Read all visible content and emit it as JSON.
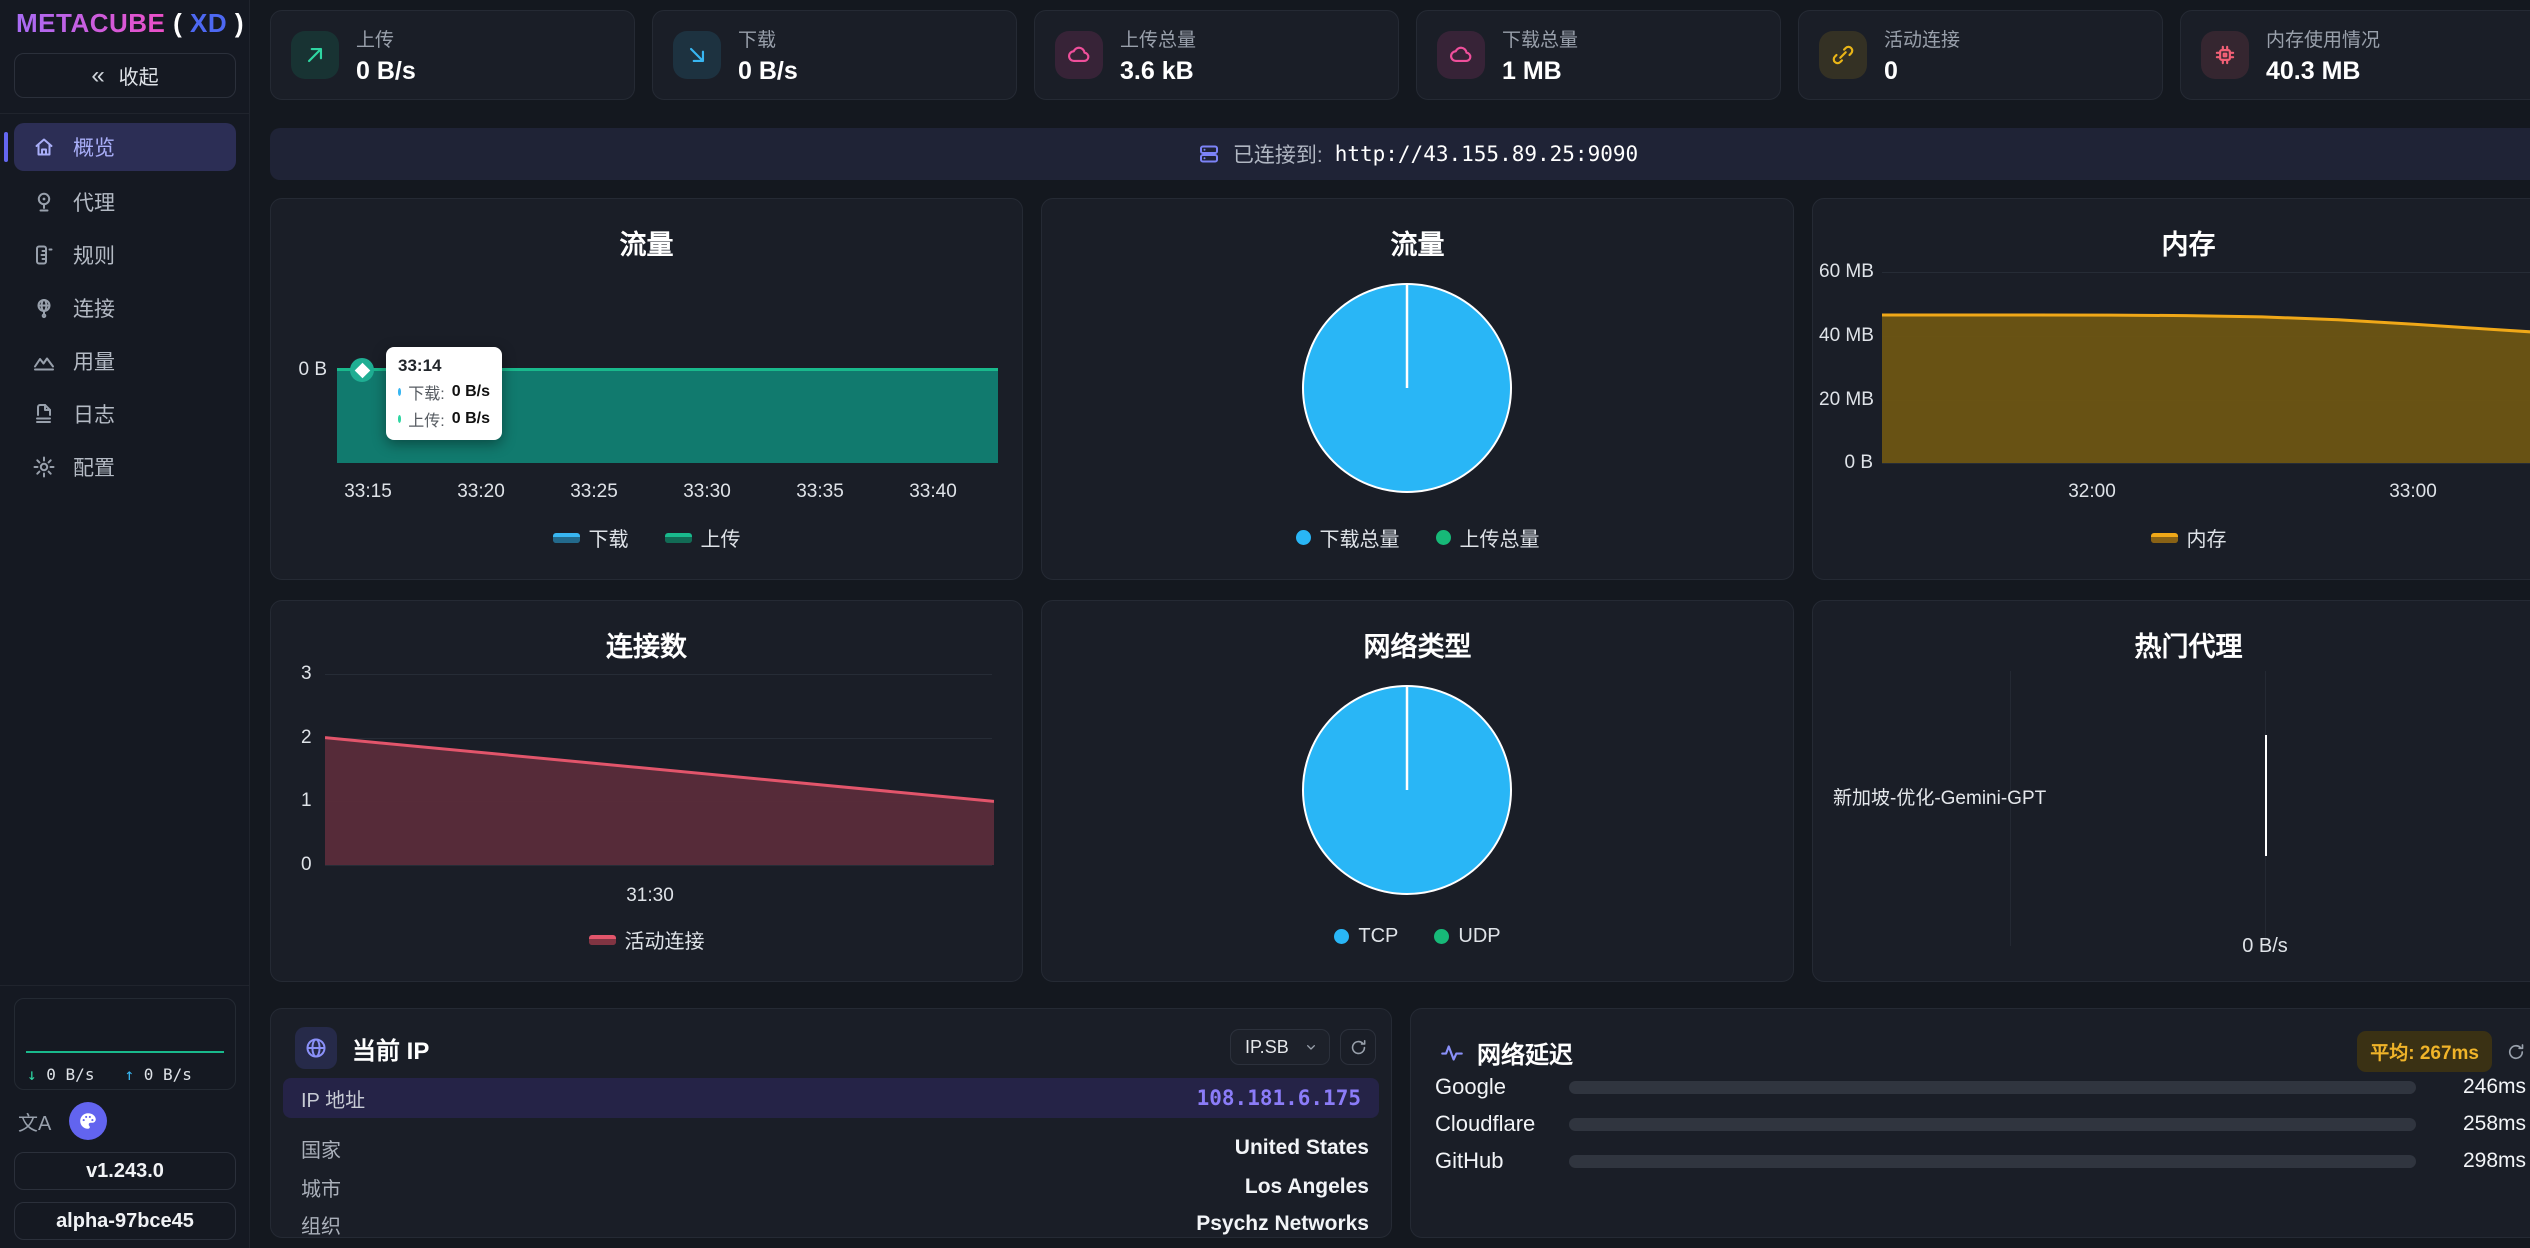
{
  "sidebar": {
    "logo": {
      "brand": "METACUBE",
      "open": "(",
      "variant": "XD",
      "close": ")"
    },
    "collapse": {
      "icon": "chevrons-left-icon",
      "label": "收起"
    },
    "nav": [
      {
        "label": "概览",
        "icon": "home-icon",
        "active": true
      },
      {
        "label": "代理",
        "icon": "proxy-icon",
        "active": false
      },
      {
        "label": "规则",
        "icon": "rules-icon",
        "active": false
      },
      {
        "label": "连接",
        "icon": "connections-icon",
        "active": false
      },
      {
        "label": "用量",
        "icon": "usage-icon",
        "active": false
      },
      {
        "label": "日志",
        "icon": "logs-icon",
        "active": false
      },
      {
        "label": "配置",
        "icon": "config-icon",
        "active": false
      }
    ],
    "footer": {
      "down_speed": "0 B/s",
      "up_speed": "0 B/s",
      "lang_icon_text": "文A",
      "palette_icon": "palette-icon",
      "version": "v1.243.0",
      "build": "alpha-97bce45",
      "sparkline_color": "#19b98c"
    }
  },
  "stats": [
    {
      "label": "上传",
      "value": "0 B/s",
      "icon": "trend-up-icon",
      "accent": "#2fd6a2",
      "bg": "rgba(16,185,129,0.14)"
    },
    {
      "label": "下载",
      "value": "0 B/s",
      "icon": "trend-down-icon",
      "accent": "#38b6f1",
      "bg": "rgba(56,182,241,0.13)"
    },
    {
      "label": "上传总量",
      "value": "3.6 kB",
      "icon": "cloud-icon",
      "accent": "#ef4f9b",
      "bg": "rgba(236,72,153,0.14)"
    },
    {
      "label": "下载总量",
      "value": "1 MB",
      "icon": "cloud-icon",
      "accent": "#ef4f9b",
      "bg": "rgba(236,72,153,0.14)"
    },
    {
      "label": "活动连接",
      "value": "0",
      "icon": "link-icon",
      "accent": "#e9b517",
      "bg": "rgba(233,181,23,0.13)"
    },
    {
      "label": "内存使用情况",
      "value": "40.3 MB",
      "icon": "chip-icon",
      "accent": "#f26076",
      "bg": "rgba(242,96,118,0.13)"
    }
  ],
  "banner": {
    "icon": "server-icon",
    "label": "已连接到:",
    "url": "http://43.155.89.25:9090"
  },
  "chart_data": [
    {
      "id": "traffic_line",
      "type": "area",
      "title": "流量",
      "y_ticks": [
        "0 B"
      ],
      "x_ticks": [
        "33:15",
        "33:20",
        "33:25",
        "33:30",
        "33:35",
        "33:40"
      ],
      "series": [
        {
          "name": "下载",
          "color": "#38b6f1",
          "fill": "#1a5d80",
          "values": [
            0,
            0,
            0,
            0,
            0,
            0,
            0
          ]
        },
        {
          "name": "上传",
          "color": "#19b98c",
          "fill": "#117a6e",
          "values": [
            0,
            0,
            0,
            0,
            0,
            0,
            0
          ]
        }
      ],
      "legend_position": "bottom",
      "tooltip": {
        "time": "33:14",
        "rows": [
          {
            "label": "下载:",
            "value": "0 B/s",
            "color": "#38b6f1"
          },
          {
            "label": "上传:",
            "value": "0 B/s",
            "color": "#2fd6a2"
          }
        ]
      }
    },
    {
      "id": "traffic_pie",
      "type": "pie",
      "title": "流量",
      "slices": [
        {
          "label": "下载总量",
          "value_pct": 99.6,
          "color": "#29b6f6"
        },
        {
          "label": "上传总量",
          "value_pct": 0.4,
          "color": "#17b978"
        }
      ],
      "legend_position": "bottom"
    },
    {
      "id": "memory",
      "type": "area",
      "title": "内存",
      "y_ticks": [
        "60 MB",
        "40 MB",
        "20 MB",
        "0 B"
      ],
      "ylim_mb": [
        0,
        60
      ],
      "x_ticks": [
        "32:00",
        "33:00"
      ],
      "series": [
        {
          "name": "内存",
          "color": "#f0a818",
          "fill": "#6d5513",
          "values_mb": [
            46.5,
            46.5,
            46.5,
            46.45,
            46.3,
            45.9,
            45.0,
            43.6,
            42.0,
            40.5
          ]
        }
      ],
      "legend_position": "bottom"
    },
    {
      "id": "connections",
      "type": "area",
      "title": "连接数",
      "y_ticks": [
        "3",
        "2",
        "1",
        "0"
      ],
      "ylim": [
        0,
        3
      ],
      "x_ticks": [
        "31:30"
      ],
      "series": [
        {
          "name": "活动连接",
          "color": "#e2556b",
          "fill": "#5a2c3a",
          "values": [
            2,
            1
          ]
        }
      ],
      "legend_position": "bottom"
    },
    {
      "id": "network_type",
      "type": "pie",
      "title": "网络类型",
      "slices": [
        {
          "label": "TCP",
          "value_pct": 99.7,
          "color": "#29b6f6"
        },
        {
          "label": "UDP",
          "value_pct": 0.3,
          "color": "#17b978"
        }
      ],
      "legend_position": "bottom"
    },
    {
      "id": "top_proxies",
      "type": "bar",
      "title": "热门代理",
      "categories": [
        "新加坡-优化-Gemini-GPT"
      ],
      "values": [
        0
      ],
      "x_tick_label": "0 B/s"
    }
  ],
  "ip_card": {
    "icon": "globe-icon",
    "title": "当前 IP",
    "provider": "IP.SB",
    "ip_field": {
      "label": "IP 地址",
      "value": "108.181.6.175",
      "accent": "#8b7cf8"
    },
    "fields": [
      {
        "label": "国家",
        "value": "United States"
      },
      {
        "label": "城市",
        "value": "Los Angeles"
      },
      {
        "label": "组织",
        "value": "Psychz Networks"
      }
    ]
  },
  "latency": {
    "icon": "pulse-icon",
    "title": "网络延迟",
    "average_label": "平均: 267ms",
    "bar_color": "#f0ac18",
    "scale_max_ms": 500,
    "targets": [
      {
        "name": "Google",
        "ms": 246,
        "label": "246ms"
      },
      {
        "name": "Cloudflare",
        "ms": 258,
        "label": "258ms"
      },
      {
        "name": "GitHub",
        "ms": 298,
        "label": "298ms"
      }
    ]
  }
}
